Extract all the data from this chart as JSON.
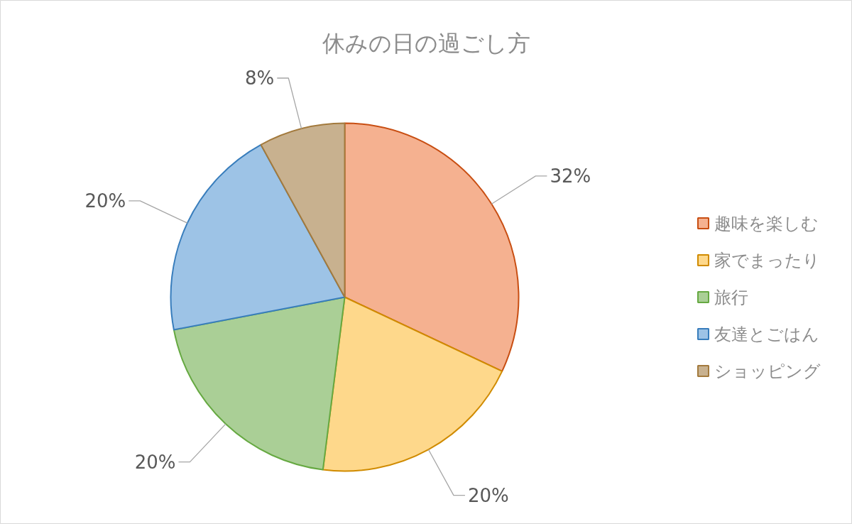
{
  "chart_data": {
    "type": "pie",
    "title": "休みの日の過ごし方",
    "categories": [
      "趣味を楽しむ",
      "家でまったり",
      "旅行",
      "友達とごはん",
      "ショッピング"
    ],
    "values": [
      32,
      20,
      20,
      20,
      8
    ],
    "value_labels": [
      "32%",
      "20%",
      "20%",
      "20%",
      "8%"
    ],
    "colors": [
      "#f5b190",
      "#fed88b",
      "#aacf96",
      "#9dc3e6",
      "#c8b18f"
    ],
    "legend": "right"
  }
}
